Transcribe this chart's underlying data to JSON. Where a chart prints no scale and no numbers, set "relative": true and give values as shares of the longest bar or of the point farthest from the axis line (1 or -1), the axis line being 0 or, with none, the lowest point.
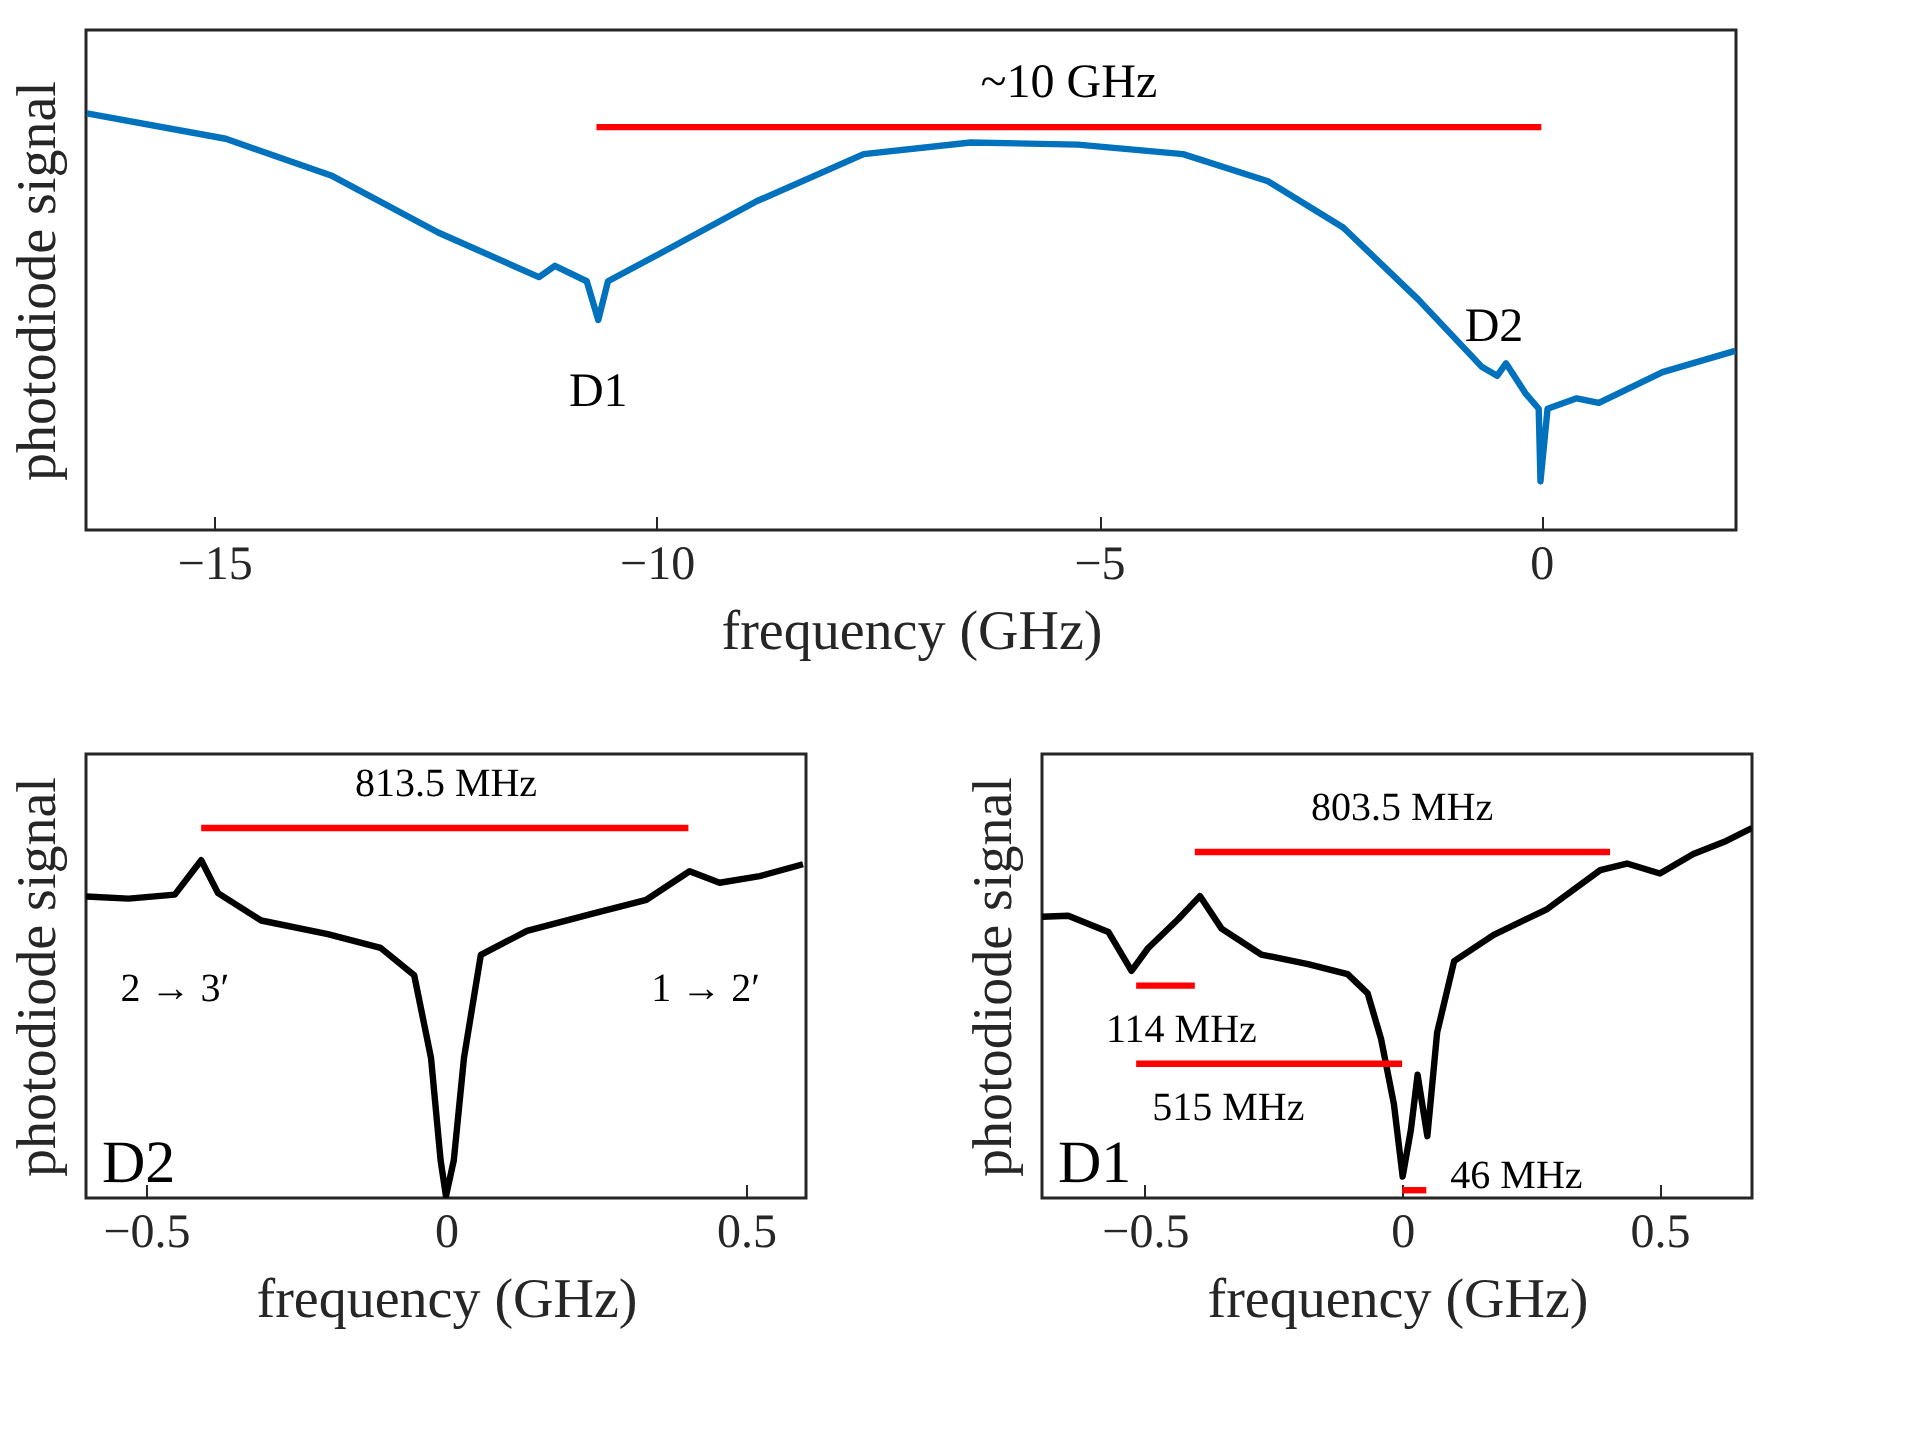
{
  "chart_data": [
    {
      "type": "line",
      "xlabel": "frequency (GHz)",
      "ylabel": "photodiode signal",
      "relative": true,
      "xlim": [
        -16.45,
        2.2
      ],
      "xticks": [
        -15,
        -10,
        -5,
        0
      ],
      "series": [
        {
          "color": "#0072bd",
          "x": [
            -16.44,
            -14.87,
            -13.68,
            -12.47,
            -11.33,
            -11.15,
            -10.79,
            -10.66,
            -10.55,
            -9.94,
            -8.87,
            -7.66,
            -6.45,
            -5.24,
            -4.05,
            -3.09,
            -2.24,
            -1.39,
            -0.67,
            -0.5,
            -0.4,
            -0.18,
            -0.03,
            -0.01,
            0.07,
            0.4,
            0.65,
            1.37,
            2.19
          ],
          "values": [
            1.0,
            0.939,
            0.851,
            0.714,
            0.607,
            0.634,
            0.597,
            0.504,
            0.597,
            0.666,
            0.789,
            0.902,
            0.93,
            0.925,
            0.902,
            0.837,
            0.726,
            0.553,
            0.391,
            0.37,
            0.4,
            0.328,
            0.291,
            0.117,
            0.291,
            0.316,
            0.305,
            0.379,
            0.43
          ]
        },
        {
          "color": "#ff0000",
          "x": [
            -10.68,
            0
          ],
          "values": [
            0.967,
            0.967
          ]
        }
      ],
      "annotations": [
        {
          "text": "~10 GHz",
          "x": -5.34,
          "y": 0.967
        },
        {
          "text": "D1",
          "x": -10.66,
          "y": 0.504
        },
        {
          "text": "D2",
          "x": -0.4,
          "y": 0.4
        }
      ]
    },
    {
      "type": "line",
      "xlabel": "frequency (GHz)",
      "ylabel": "photodiode signal",
      "relative": true,
      "xlim": [
        -0.6,
        0.6
      ],
      "xticks": [
        -0.5,
        0,
        0.5
      ],
      "series": [
        {
          "color": "#000000",
          "x": [
            -0.6,
            -0.529,
            -0.452,
            -0.408,
            -0.38,
            -0.308,
            -0.197,
            -0.109,
            -0.053,
            -0.025,
            -0.009,
            0,
            0.013,
            0.03,
            0.058,
            0.135,
            0.246,
            0.334,
            0.406,
            0.456,
            0.523,
            0.595
          ],
          "values": [
            0.815,
            0.809,
            0.82,
            0.913,
            0.824,
            0.75,
            0.713,
            0.676,
            0.602,
            0.379,
            0.102,
            0.005,
            0.102,
            0.379,
            0.657,
            0.722,
            0.769,
            0.806,
            0.883,
            0.852,
            0.87,
            0.902
          ]
        },
        {
          "color": "#ff0000",
          "x": [
            -0.408,
            0.404
          ],
          "values": [
            1.0,
            1.0
          ]
        }
      ],
      "annotations": [
        {
          "text": "813.5 MHz",
          "x": 0,
          "y": 1.0
        },
        {
          "text": "2 → 3′",
          "x": -0.452,
          "y": 0.82
        },
        {
          "text": "1 → 2′",
          "x": 0.406,
          "y": 0.883
        },
        "D2"
      ]
    },
    {
      "type": "line",
      "xlabel": "frequency (GHz)",
      "ylabel": "photodiode signal",
      "relative": true,
      "xlim": [
        -0.7,
        0.68
      ],
      "xticks": [
        -0.5,
        0,
        0.5
      ],
      "series": [
        {
          "color": "#000000",
          "x": [
            -0.7,
            -0.649,
            -0.571,
            -0.526,
            -0.494,
            -0.435,
            -0.393,
            -0.351,
            -0.274,
            -0.183,
            -0.106,
            -0.067,
            -0.041,
            -0.016,
            0.001,
            0.017,
            0.03,
            0.049,
            0.068,
            0.101,
            0.178,
            0.282,
            0.385,
            0.437,
            0.501,
            0.566,
            0.63,
            0.68
          ],
          "values": [
            0.76,
            0.763,
            0.719,
            0.614,
            0.675,
            0.754,
            0.816,
            0.728,
            0.658,
            0.632,
            0.605,
            0.553,
            0.43,
            0.254,
            0.058,
            0.184,
            0.333,
            0.167,
            0.447,
            0.64,
            0.711,
            0.781,
            0.886,
            0.904,
            0.877,
            0.93,
            0.965,
            1.0
          ]
        },
        {
          "color": "#ff0000",
          "x": [
            -0.403,
            0.404
          ],
          "values": [
            0.935,
            0.935
          ]
        },
        {
          "color": "#ff0000",
          "x": [
            -0.517,
            -0.403
          ],
          "values": [
            0.574,
            0.574
          ]
        },
        {
          "color": "#ff0000",
          "x": [
            -0.517,
            0
          ],
          "values": [
            0.363,
            0.363
          ]
        },
        {
          "color": "#ff0000",
          "x": [
            0,
            0.047
          ],
          "values": [
            0.021,
            0.021
          ]
        }
      ],
      "annotations": [
        {
          "text": "803.5 MHz",
          "x": 0,
          "y": 0.935
        },
        {
          "text": "114 MHz",
          "x": -0.46,
          "y": 0.574
        },
        {
          "text": "515 MHz",
          "x": -0.26,
          "y": 0.363
        },
        {
          "text": "46 MHz",
          "x": 0.047,
          "y": 0.021
        },
        "D1"
      ]
    }
  ]
}
